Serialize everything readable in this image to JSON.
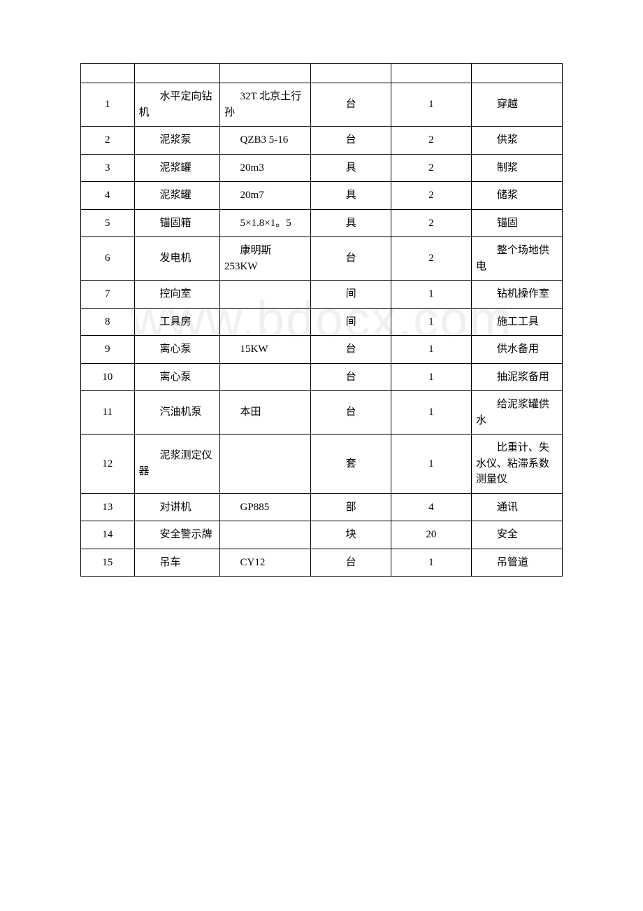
{
  "watermark": "www.bdocx.com",
  "table": {
    "rows": [
      {
        "idx": "1",
        "name": "水平定向钻机",
        "spec": "32T 北京土行孙",
        "unit": "台",
        "qty": "1",
        "remark": "穿越"
      },
      {
        "idx": "2",
        "name": "泥浆泵",
        "spec": "QZB3 5-16",
        "unit": "台",
        "qty": "2",
        "remark": "供浆"
      },
      {
        "idx": "3",
        "name": "泥浆罐",
        "spec": "20m3",
        "unit": "具",
        "qty": "2",
        "remark": "制浆"
      },
      {
        "idx": "4",
        "name": "泥浆罐",
        "spec": "20m7",
        "unit": "具",
        "qty": "2",
        "remark": "储浆"
      },
      {
        "idx": "5",
        "name": "锚固箱",
        "spec": "5×1.8×1。5",
        "unit": "具",
        "qty": "2",
        "remark": "锚固"
      },
      {
        "idx": "6",
        "name": "发电机",
        "spec": "康明斯 253KW",
        "unit": "台",
        "qty": "2",
        "remark": "整个场地供电"
      },
      {
        "idx": "7",
        "name": "控向室",
        "spec": "",
        "unit": "间",
        "qty": "1",
        "remark": "钻机操作室"
      },
      {
        "idx": "8",
        "name": "工具房",
        "spec": "",
        "unit": "间",
        "qty": "1",
        "remark": "施工工具"
      },
      {
        "idx": "9",
        "name": "离心泵",
        "spec": "15KW",
        "unit": "台",
        "qty": "1",
        "remark": "供水备用"
      },
      {
        "idx": "10",
        "name": "离心泵",
        "spec": "",
        "unit": "台",
        "qty": "1",
        "remark": "抽泥浆备用"
      },
      {
        "idx": "11",
        "name": "汽油机泵",
        "spec": "本田",
        "unit": "台",
        "qty": "1",
        "remark": "给泥浆罐供水"
      },
      {
        "idx": "12",
        "name": "泥浆测定仪器",
        "spec": "",
        "unit": "套",
        "qty": "1",
        "remark": "比重计、失水仪、粘滞系数测量仪"
      },
      {
        "idx": "13",
        "name": "对讲机",
        "spec": "GP885",
        "unit": "部",
        "qty": "4",
        "remark": "通讯"
      },
      {
        "idx": "14",
        "name": "安全警示牌",
        "spec": "",
        "unit": "块",
        "qty": "20",
        "remark": "安全"
      },
      {
        "idx": "15",
        "name": "吊车",
        "spec": "CY12",
        "unit": "台",
        "qty": "1",
        "remark": "吊管道"
      }
    ]
  }
}
